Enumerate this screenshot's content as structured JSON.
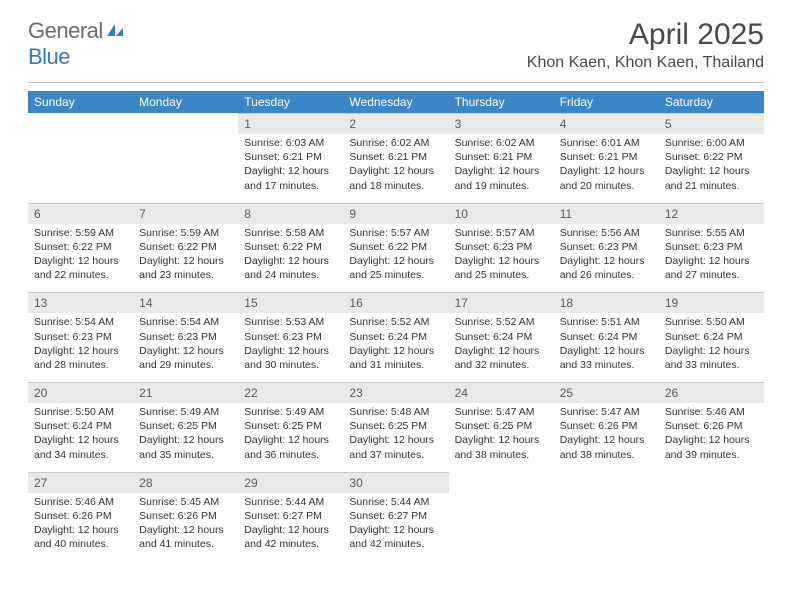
{
  "brand": {
    "word1": "General",
    "word2": "Blue"
  },
  "title": "April 2025",
  "location": "Khon Kaen, Khon Kaen, Thailand",
  "colors": {
    "header_bg": "#3b86c6",
    "header_text": "#ffffff",
    "daynum_bg": "#e9e9e9",
    "logo_gray": "#6d6d6d",
    "logo_blue": "#2f7fc0"
  },
  "day_names": [
    "Sunday",
    "Monday",
    "Tuesday",
    "Wednesday",
    "Thursday",
    "Friday",
    "Saturday"
  ],
  "weeks": [
    [
      null,
      null,
      {
        "n": "1",
        "sunrise": "6:03 AM",
        "sunset": "6:21 PM",
        "daylight": "12 hours and 17 minutes."
      },
      {
        "n": "2",
        "sunrise": "6:02 AM",
        "sunset": "6:21 PM",
        "daylight": "12 hours and 18 minutes."
      },
      {
        "n": "3",
        "sunrise": "6:02 AM",
        "sunset": "6:21 PM",
        "daylight": "12 hours and 19 minutes."
      },
      {
        "n": "4",
        "sunrise": "6:01 AM",
        "sunset": "6:21 PM",
        "daylight": "12 hours and 20 minutes."
      },
      {
        "n": "5",
        "sunrise": "6:00 AM",
        "sunset": "6:22 PM",
        "daylight": "12 hours and 21 minutes."
      }
    ],
    [
      {
        "n": "6",
        "sunrise": "5:59 AM",
        "sunset": "6:22 PM",
        "daylight": "12 hours and 22 minutes."
      },
      {
        "n": "7",
        "sunrise": "5:59 AM",
        "sunset": "6:22 PM",
        "daylight": "12 hours and 23 minutes."
      },
      {
        "n": "8",
        "sunrise": "5:58 AM",
        "sunset": "6:22 PM",
        "daylight": "12 hours and 24 minutes."
      },
      {
        "n": "9",
        "sunrise": "5:57 AM",
        "sunset": "6:22 PM",
        "daylight": "12 hours and 25 minutes."
      },
      {
        "n": "10",
        "sunrise": "5:57 AM",
        "sunset": "6:23 PM",
        "daylight": "12 hours and 25 minutes."
      },
      {
        "n": "11",
        "sunrise": "5:56 AM",
        "sunset": "6:23 PM",
        "daylight": "12 hours and 26 minutes."
      },
      {
        "n": "12",
        "sunrise": "5:55 AM",
        "sunset": "6:23 PM",
        "daylight": "12 hours and 27 minutes."
      }
    ],
    [
      {
        "n": "13",
        "sunrise": "5:54 AM",
        "sunset": "6:23 PM",
        "daylight": "12 hours and 28 minutes."
      },
      {
        "n": "14",
        "sunrise": "5:54 AM",
        "sunset": "6:23 PM",
        "daylight": "12 hours and 29 minutes."
      },
      {
        "n": "15",
        "sunrise": "5:53 AM",
        "sunset": "6:23 PM",
        "daylight": "12 hours and 30 minutes."
      },
      {
        "n": "16",
        "sunrise": "5:52 AM",
        "sunset": "6:24 PM",
        "daylight": "12 hours and 31 minutes."
      },
      {
        "n": "17",
        "sunrise": "5:52 AM",
        "sunset": "6:24 PM",
        "daylight": "12 hours and 32 minutes."
      },
      {
        "n": "18",
        "sunrise": "5:51 AM",
        "sunset": "6:24 PM",
        "daylight": "12 hours and 33 minutes."
      },
      {
        "n": "19",
        "sunrise": "5:50 AM",
        "sunset": "6:24 PM",
        "daylight": "12 hours and 33 minutes."
      }
    ],
    [
      {
        "n": "20",
        "sunrise": "5:50 AM",
        "sunset": "6:24 PM",
        "daylight": "12 hours and 34 minutes."
      },
      {
        "n": "21",
        "sunrise": "5:49 AM",
        "sunset": "6:25 PM",
        "daylight": "12 hours and 35 minutes."
      },
      {
        "n": "22",
        "sunrise": "5:49 AM",
        "sunset": "6:25 PM",
        "daylight": "12 hours and 36 minutes."
      },
      {
        "n": "23",
        "sunrise": "5:48 AM",
        "sunset": "6:25 PM",
        "daylight": "12 hours and 37 minutes."
      },
      {
        "n": "24",
        "sunrise": "5:47 AM",
        "sunset": "6:25 PM",
        "daylight": "12 hours and 38 minutes."
      },
      {
        "n": "25",
        "sunrise": "5:47 AM",
        "sunset": "6:26 PM",
        "daylight": "12 hours and 38 minutes."
      },
      {
        "n": "26",
        "sunrise": "5:46 AM",
        "sunset": "6:26 PM",
        "daylight": "12 hours and 39 minutes."
      }
    ],
    [
      {
        "n": "27",
        "sunrise": "5:46 AM",
        "sunset": "6:26 PM",
        "daylight": "12 hours and 40 minutes."
      },
      {
        "n": "28",
        "sunrise": "5:45 AM",
        "sunset": "6:26 PM",
        "daylight": "12 hours and 41 minutes."
      },
      {
        "n": "29",
        "sunrise": "5:44 AM",
        "sunset": "6:27 PM",
        "daylight": "12 hours and 42 minutes."
      },
      {
        "n": "30",
        "sunrise": "5:44 AM",
        "sunset": "6:27 PM",
        "daylight": "12 hours and 42 minutes."
      },
      null,
      null,
      null
    ]
  ],
  "labels": {
    "sunrise": "Sunrise:",
    "sunset": "Sunset:",
    "daylight": "Daylight:"
  }
}
